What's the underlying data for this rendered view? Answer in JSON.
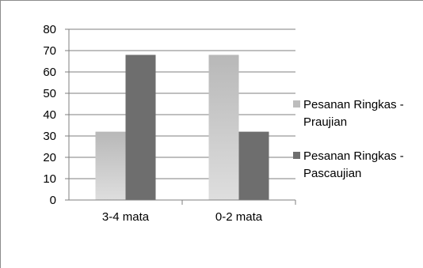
{
  "chart_data": {
    "type": "bar",
    "categories": [
      "3-4 mata",
      "0-2 mata"
    ],
    "series": [
      {
        "name": "Pesanan Ringkas - Praujian",
        "values": [
          32,
          68
        ],
        "color": "#bdbdbd"
      },
      {
        "name": "Pesanan Ringkas - Pascaujian",
        "values": [
          68,
          32
        ],
        "color": "#6e6e6e"
      }
    ],
    "y_ticks": [
      "0",
      "10",
      "20",
      "30",
      "40",
      "50",
      "60",
      "70",
      "80"
    ],
    "ylim": [
      0,
      80
    ],
    "ystep": 10,
    "grid": true,
    "legend_position": "right",
    "legend_lines": [
      [
        "Pesanan Ringkas -",
        "Praujian"
      ],
      [
        "Pesanan Ringkas -",
        "Pascaujian"
      ]
    ],
    "axis_color": "#7f7f7f",
    "grid_color": "#7f7f7f"
  }
}
